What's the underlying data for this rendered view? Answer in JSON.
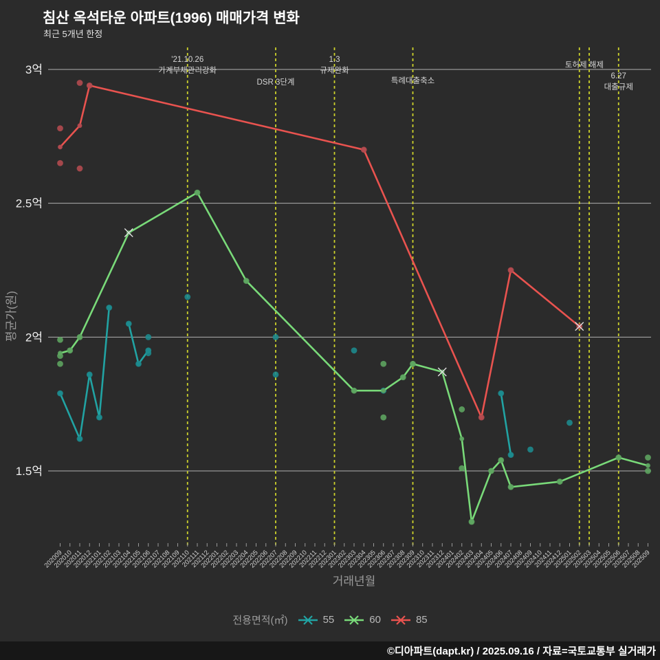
{
  "page": {
    "title": "침산 옥석타운 아파트(1996) 매매가격 변화",
    "subtitle": "최근 5개년 한정",
    "footer": "©디아파트(dapt.kr) / 2025.09.16 / 자료=국토교통부 실거래가"
  },
  "legend": {
    "label": "전용면적(㎡)",
    "items": [
      {
        "name": "55",
        "color": "#21a3a3"
      },
      {
        "name": "60",
        "color": "#79da79"
      },
      {
        "name": "85",
        "color": "#e9534f"
      }
    ]
  },
  "colors": {
    "background": "#2b2b2b",
    "gridline": "#c9c9c9",
    "event_line": "#cdd22b",
    "event_label": "#d6d6d6",
    "axis_title": "#9a9a9a",
    "y_tick_label": "#efefef",
    "x_tick_label": "#d0d0d0",
    "x_marker": "#e2e2e2"
  },
  "chart_data": {
    "type": "line",
    "title": "침산 옥석타운 아파트(1996) 매매가격 변화",
    "subtitle": "최근 5개년 한정",
    "xlabel": "거래년월",
    "ylabel": "평균가(원)",
    "ylim": [
      1.25,
      3.05
    ],
    "grid": "horizontal-only",
    "legend_position": "bottom-center",
    "y_ticks": [
      {
        "value": 3.0,
        "label": "3억"
      },
      {
        "value": 2.5,
        "label": "2.5억"
      },
      {
        "value": 2.0,
        "label": "2억"
      },
      {
        "value": 1.5,
        "label": "1.5억"
      }
    ],
    "x_categories": [
      "202009",
      "202010",
      "202011",
      "202012",
      "202101",
      "202102",
      "202103",
      "202104",
      "202105",
      "202106",
      "202107",
      "202108",
      "202109",
      "202110",
      "202111",
      "202112",
      "202201",
      "202202",
      "202203",
      "202204",
      "202205",
      "202206",
      "202207",
      "202208",
      "202209",
      "202210",
      "202211",
      "202212",
      "202301",
      "202302",
      "202303",
      "202304",
      "202305",
      "202306",
      "202307",
      "202308",
      "202309",
      "202310",
      "202311",
      "202312",
      "202401",
      "202402",
      "202403",
      "202404",
      "202405",
      "202406",
      "202407",
      "202408",
      "202409",
      "202410",
      "202411",
      "202412",
      "202501",
      "202502",
      "202503",
      "202504",
      "202505",
      "202506",
      "202507",
      "202508",
      "202509"
    ],
    "unit": "억원",
    "series": [
      {
        "name": "55",
        "line_color": "#21a3a3",
        "dot_color": "#1d8b8e",
        "line_runs": [
          [
            [
              "202009",
              1.79
            ],
            [
              "202011",
              1.62
            ],
            [
              "202012",
              1.86
            ],
            [
              "202101",
              1.7
            ],
            [
              "202102",
              2.11
            ]
          ],
          [
            [
              "202104",
              2.05
            ],
            [
              "202105",
              1.9
            ],
            [
              "202106",
              1.95
            ]
          ],
          [
            [
              "202406",
              1.79
            ],
            [
              "202407",
              1.56
            ]
          ]
        ],
        "points": [
          [
            "202009",
            1.79
          ],
          [
            "202011",
            1.62
          ],
          [
            "202012",
            1.86
          ],
          [
            "202101",
            1.7
          ],
          [
            "202102",
            2.11
          ],
          [
            "202104",
            2.05
          ],
          [
            "202105",
            1.9
          ],
          [
            "202106",
            2.0
          ],
          [
            "202106",
            1.95
          ],
          [
            "202106",
            1.94
          ],
          [
            "202110",
            2.15
          ],
          [
            "202207",
            2.0
          ],
          [
            "202207",
            1.86
          ],
          [
            "202303",
            1.95
          ],
          [
            "202306",
            1.8
          ],
          [
            "202406",
            1.79
          ],
          [
            "202407",
            1.56
          ],
          [
            "202409",
            1.58
          ],
          [
            "202501",
            1.68
          ]
        ],
        "x_markers": []
      },
      {
        "name": "60",
        "line_color": "#79da79",
        "dot_color": "#5ea661",
        "line_runs": [
          [
            [
              "202009",
              1.94
            ],
            [
              "202010",
              1.95
            ],
            [
              "202011",
              2.0
            ],
            [
              "202104",
              2.39
            ],
            [
              "202111",
              2.54
            ],
            [
              "202204",
              2.21
            ],
            [
              "202303",
              1.8
            ],
            [
              "202306",
              1.8
            ],
            [
              "202308",
              1.85
            ],
            [
              "202309",
              1.9
            ],
            [
              "202312",
              1.87
            ],
            [
              "202402",
              1.62
            ],
            [
              "202403",
              1.31
            ],
            [
              "202405",
              1.5
            ],
            [
              "202406",
              1.54
            ],
            [
              "202407",
              1.44
            ],
            [
              "202412",
              1.46
            ],
            [
              "202506",
              1.55
            ],
            [
              "202509",
              1.52
            ]
          ]
        ],
        "points": [
          [
            "202009",
            1.99
          ],
          [
            "202009",
            1.93
          ],
          [
            "202009",
            1.9
          ],
          [
            "202010",
            1.95
          ],
          [
            "202011",
            2.0
          ],
          [
            "202111",
            2.54
          ],
          [
            "202204",
            2.21
          ],
          [
            "202303",
            1.8
          ],
          [
            "202306",
            1.9
          ],
          [
            "202306",
            1.7
          ],
          [
            "202308",
            1.85
          ],
          [
            "202309",
            1.9
          ],
          [
            "202402",
            1.73
          ],
          [
            "202402",
            1.51
          ],
          [
            "202403",
            1.31
          ],
          [
            "202405",
            1.5
          ],
          [
            "202406",
            1.54
          ],
          [
            "202407",
            1.44
          ],
          [
            "202412",
            1.46
          ],
          [
            "202506",
            1.55
          ],
          [
            "202509",
            1.55
          ],
          [
            "202509",
            1.5
          ]
        ],
        "x_markers": [
          [
            "202104",
            2.39
          ],
          [
            "202312",
            1.87
          ]
        ]
      },
      {
        "name": "85",
        "line_color": "#e9534f",
        "dot_color": "#b54b50",
        "line_runs": [
          [
            [
              "202009",
              2.71
            ],
            [
              "202011",
              2.79
            ],
            [
              "202012",
              2.94
            ],
            [
              "202304",
              2.7
            ],
            [
              "202404",
              1.7
            ],
            [
              "202407",
              2.25
            ],
            [
              "202502",
              2.04
            ]
          ]
        ],
        "points": [
          [
            "202009",
            2.78
          ],
          [
            "202009",
            2.65
          ],
          [
            "202011",
            2.95
          ],
          [
            "202011",
            2.63
          ],
          [
            "202012",
            2.94
          ],
          [
            "202304",
            2.7
          ],
          [
            "202404",
            1.7
          ],
          [
            "202407",
            2.25
          ],
          [
            "202502",
            2.04
          ]
        ],
        "x_markers": [
          [
            "202502",
            2.04
          ]
        ]
      }
    ],
    "events": [
      {
        "months": [
          "202110"
        ],
        "label_lines": [
          "'21.10.26",
          "가계부채관리강화"
        ],
        "label_top": 82
      },
      {
        "months": [
          "202207"
        ],
        "label_lines": [
          "DSR 3단계"
        ],
        "label_top": 115
      },
      {
        "months": [
          "202301"
        ],
        "label_lines": [
          "1.3",
          "규제완화"
        ],
        "label_top": 82
      },
      {
        "months": [
          "202309"
        ],
        "label_lines": [
          "특례대출축소"
        ],
        "label_top": 113
      },
      {
        "months": [
          "202502",
          "202503"
        ],
        "label_lines": [
          "토허제 해제"
        ],
        "label_top": 90
      },
      {
        "months": [
          "202506"
        ],
        "label_lines": [
          "6.27",
          "대출규제"
        ],
        "label_top": 106
      }
    ]
  }
}
